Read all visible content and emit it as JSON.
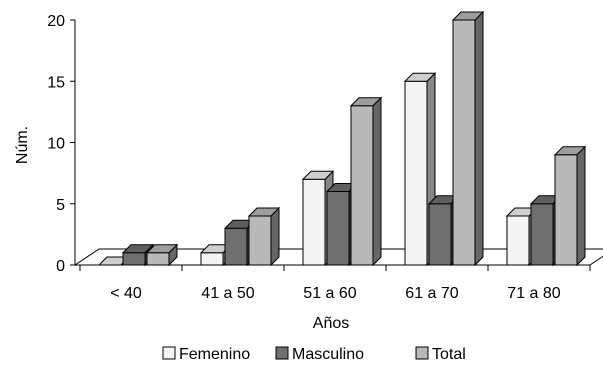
{
  "chart_data": {
    "type": "bar",
    "categories": [
      "< 40",
      "41 a 50",
      "51 a 60",
      "61 a 70",
      "71 a 80"
    ],
    "series": [
      {
        "name": "Femenino",
        "values": [
          0,
          1,
          7,
          15,
          4
        ],
        "color": "#f4f4f4"
      },
      {
        "name": "Masculino",
        "values": [
          1,
          3,
          6,
          5,
          5
        ],
        "color": "#6f6f6f"
      },
      {
        "name": "Total",
        "values": [
          1,
          4,
          13,
          20,
          9
        ],
        "color": "#b9b9b9"
      }
    ],
    "xlabel": "Años",
    "ylabel": "Núm.",
    "ylim": [
      0,
      20
    ],
    "yticks": [
      0,
      5,
      10,
      15,
      20
    ],
    "legend_position": "bottom",
    "style": "3d-clustered-column",
    "grid": false
  }
}
